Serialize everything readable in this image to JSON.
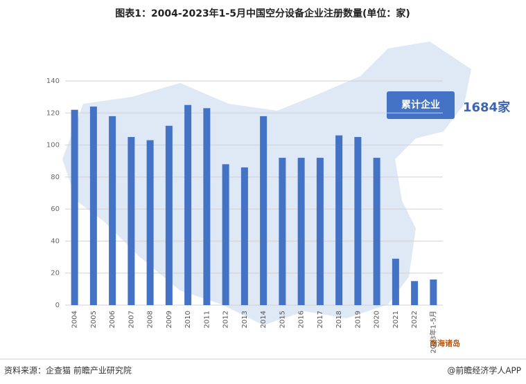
{
  "chart_data": {
    "type": "bar",
    "title": "图表1：2004-2023年1-5月中国空分设备企业注册数量(单位：家)",
    "categories": [
      "2004",
      "2005",
      "2006",
      "2007",
      "2008",
      "2009",
      "2010",
      "2011",
      "2012",
      "2013",
      "2014",
      "2015",
      "2016",
      "2017",
      "2018",
      "2019",
      "2020",
      "2021",
      "2022",
      "2023年1-5月"
    ],
    "values": [
      122,
      124,
      118,
      105,
      103,
      112,
      125,
      123,
      88,
      86,
      118,
      92,
      92,
      92,
      106,
      105,
      92,
      29,
      15,
      16
    ],
    "color": "#4472c4",
    "ylim": [
      0,
      140
    ],
    "yticks": [
      0,
      20,
      40,
      60,
      80,
      100,
      120,
      140
    ],
    "grid": true,
    "annotation_label": "累计企业",
    "annotation_value": "1684家",
    "map_label": "南海诸岛",
    "source": "资料来源：企查猫 前瞻产业研究院",
    "brand": "@前瞻经济学人APP"
  }
}
